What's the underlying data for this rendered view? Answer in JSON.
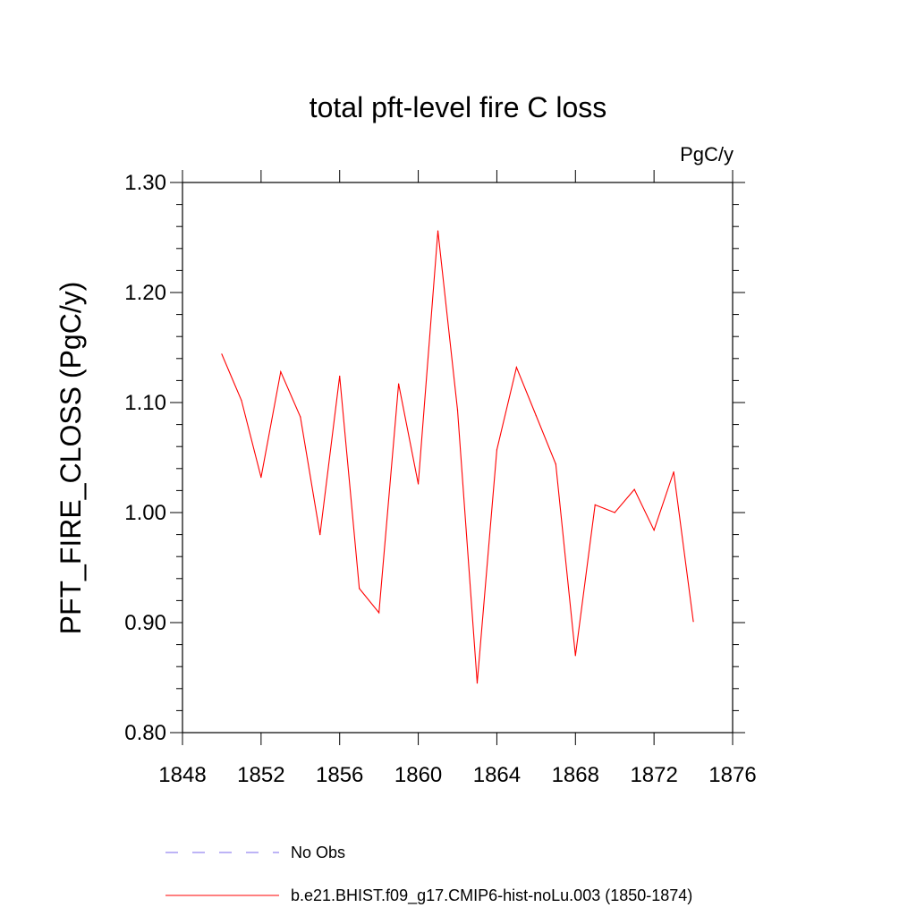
{
  "chart_data": {
    "type": "line",
    "title": "total pft-level fire C loss",
    "units_label": "PgC/y",
    "ylabel": "PFT_FIRE_CLOSS  (PgC/y)",
    "xlabel": "",
    "xlim": [
      1848,
      1876
    ],
    "ylim": [
      0.8,
      1.3
    ],
    "x_ticks": [
      1848,
      1852,
      1856,
      1860,
      1864,
      1868,
      1872,
      1876
    ],
    "x_tick_labels": [
      "1848",
      "1852",
      "1856",
      "1860",
      "1864",
      "1868",
      "1872",
      "1876"
    ],
    "y_ticks": [
      0.8,
      0.9,
      1.0,
      1.1,
      1.2,
      1.3
    ],
    "y_tick_labels": [
      "0.80",
      "0.90",
      "1.00",
      "1.10",
      "1.20",
      "1.30"
    ],
    "grid": false,
    "legend_position": "bottom",
    "series": [
      {
        "name": "b.e21.BHIST.f09_g17.CMIP6-hist-noLu.003 (1850-1874)",
        "color": "#ff0000",
        "style": "solid",
        "x": [
          1850,
          1851,
          1852,
          1853,
          1854,
          1855,
          1856,
          1857,
          1858,
          1859,
          1860,
          1861,
          1862,
          1863,
          1864,
          1865,
          1866,
          1867,
          1868,
          1869,
          1870,
          1871,
          1872,
          1873,
          1874
        ],
        "values": [
          1.144,
          1.102,
          1.032,
          1.128,
          1.087,
          0.98,
          1.124,
          0.931,
          0.909,
          1.117,
          1.026,
          1.256,
          1.093,
          0.845,
          1.057,
          1.132,
          1.088,
          1.044,
          0.87,
          1.007,
          1.0,
          1.021,
          0.984,
          1.037,
          0.901
        ]
      }
    ],
    "legend": [
      {
        "label": "No Obs",
        "color": "#7b68ee",
        "style": "dashed"
      },
      {
        "label": "b.e21.BHIST.f09_g17.CMIP6-hist-noLu.003 (1850-1874)",
        "color": "#ff0000",
        "style": "solid"
      }
    ]
  }
}
